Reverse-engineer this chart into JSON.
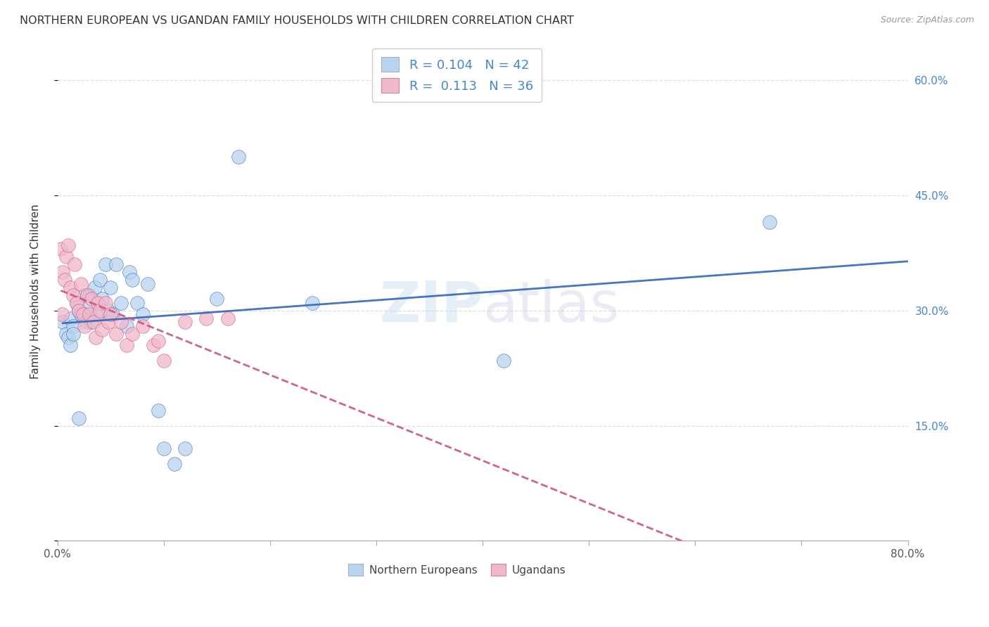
{
  "title": "NORTHERN EUROPEAN VS UGANDAN FAMILY HOUSEHOLDS WITH CHILDREN CORRELATION CHART",
  "source": "Source: ZipAtlas.com",
  "ylabel": "Family Households with Children",
  "xlim": [
    0,
    0.8
  ],
  "ylim": [
    0,
    0.65
  ],
  "legend1_r": "0.104",
  "legend1_n": "42",
  "legend2_r": "0.113",
  "legend2_n": "36",
  "color_blue": "#b8d4f0",
  "color_pink": "#f0b8cc",
  "trendline_blue": "#3366bb",
  "trendline_pink": "#cc5577",
  "right_ytick_color": "#4488cc",
  "northern_europeans_x": [
    0.005,
    0.008,
    0.01,
    0.012,
    0.013,
    0.015,
    0.015,
    0.018,
    0.02,
    0.02,
    0.022,
    0.025,
    0.026,
    0.028,
    0.03,
    0.03,
    0.032,
    0.035,
    0.038,
    0.04,
    0.042,
    0.045,
    0.048,
    0.05,
    0.052,
    0.055,
    0.06,
    0.065,
    0.068,
    0.07,
    0.075,
    0.08,
    0.085,
    0.095,
    0.1,
    0.11,
    0.12,
    0.15,
    0.17,
    0.24,
    0.42,
    0.67
  ],
  "northern_europeans_y": [
    0.285,
    0.27,
    0.265,
    0.255,
    0.29,
    0.28,
    0.27,
    0.31,
    0.3,
    0.16,
    0.295,
    0.32,
    0.295,
    0.285,
    0.32,
    0.305,
    0.285,
    0.33,
    0.295,
    0.34,
    0.315,
    0.36,
    0.3,
    0.33,
    0.295,
    0.36,
    0.31,
    0.28,
    0.35,
    0.34,
    0.31,
    0.295,
    0.335,
    0.17,
    0.12,
    0.1,
    0.12,
    0.315,
    0.5,
    0.31,
    0.235,
    0.415
  ],
  "ugandans_x": [
    0.003,
    0.004,
    0.005,
    0.007,
    0.008,
    0.01,
    0.012,
    0.015,
    0.016,
    0.018,
    0.02,
    0.022,
    0.024,
    0.025,
    0.028,
    0.03,
    0.032,
    0.034,
    0.036,
    0.038,
    0.04,
    0.042,
    0.045,
    0.048,
    0.05,
    0.055,
    0.06,
    0.065,
    0.07,
    0.08,
    0.09,
    0.095,
    0.1,
    0.12,
    0.14,
    0.16
  ],
  "ugandans_y": [
    0.38,
    0.295,
    0.35,
    0.34,
    0.37,
    0.385,
    0.33,
    0.32,
    0.36,
    0.31,
    0.3,
    0.335,
    0.295,
    0.28,
    0.32,
    0.295,
    0.315,
    0.285,
    0.265,
    0.31,
    0.3,
    0.275,
    0.31,
    0.285,
    0.295,
    0.27,
    0.285,
    0.255,
    0.27,
    0.28,
    0.255,
    0.26,
    0.235,
    0.285,
    0.29,
    0.29
  ],
  "xtick_positions": [
    0.0,
    0.1,
    0.2,
    0.3,
    0.4,
    0.5,
    0.6,
    0.7,
    0.8
  ],
  "xtick_labels": [
    "0.0%",
    "",
    "",
    "",
    "",
    "",
    "",
    "",
    "80.0%"
  ],
  "ytick_positions": [
    0.0,
    0.15,
    0.3,
    0.45,
    0.6
  ],
  "ytick_labels_right": [
    "",
    "15.0%",
    "30.0%",
    "45.0%",
    "60.0%"
  ]
}
